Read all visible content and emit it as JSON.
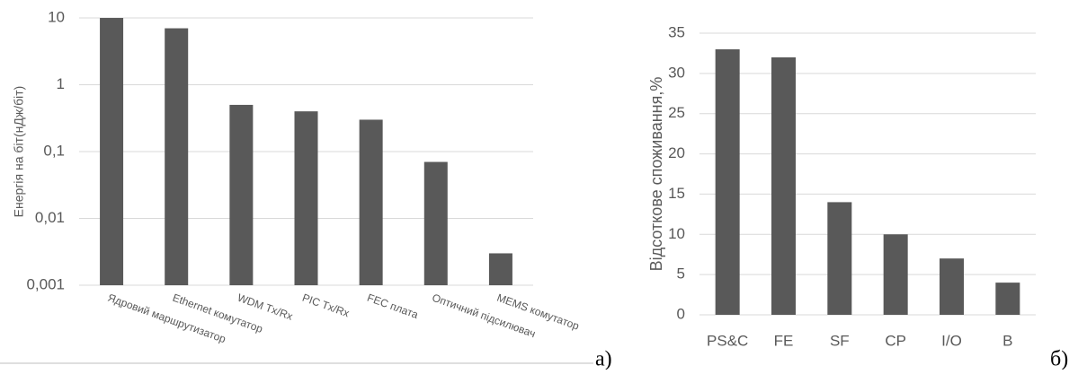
{
  "chart_data": [
    {
      "type": "bar",
      "log_scale": true,
      "grid": true,
      "color": "#595959",
      "y_label": "Енергія на біт(нДж/біт)",
      "panel_label": "а)",
      "categories": [
        "Ядровий маршрутизатор",
        "Ethernet комутатор",
        "WDM Tx/Rx",
        "PIC Tx/Rx",
        "FEC плата",
        "Оптичний підсилювач",
        "MEMS комутатор"
      ],
      "values": [
        10,
        7,
        0.5,
        0.4,
        0.3,
        0.07,
        0.003
      ],
      "ylim": [
        0.001,
        10
      ],
      "yticks": [
        {
          "value": 0.001,
          "label": "0,001"
        },
        {
          "value": 0.01,
          "label": "0,01"
        },
        {
          "value": 0.1,
          "label": "0,1"
        },
        1,
        10
      ]
    },
    {
      "type": "bar",
      "log_scale": false,
      "grid": true,
      "color": "#595959",
      "y_label": "Відсоткове споживання,%",
      "panel_label": "б)",
      "categories": [
        "PS&C",
        "FE",
        "SF",
        "CP",
        "I/O",
        "B"
      ],
      "values": [
        33,
        32,
        14,
        10,
        7,
        4
      ],
      "ylim": [
        0,
        35
      ],
      "yticks": [
        0,
        5,
        10,
        15,
        20,
        25,
        30,
        35
      ]
    }
  ]
}
